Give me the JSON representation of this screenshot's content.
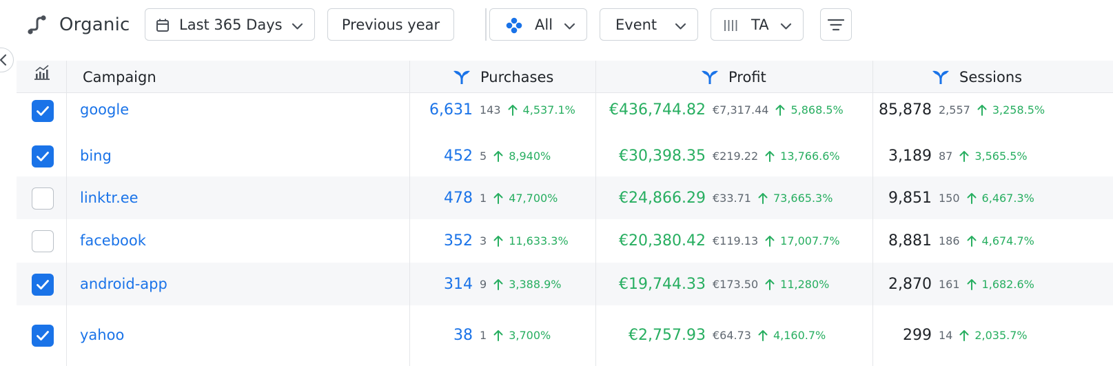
{
  "toolbar": {
    "title": "Organic",
    "date_range": "Last 365 Days",
    "compare": "Previous year",
    "channel": "All",
    "attribution": "Event",
    "model": "TA"
  },
  "table": {
    "headers": {
      "campaign": "Campaign",
      "purchases": "Purchases",
      "profit": "Profit",
      "sessions": "Sessions"
    },
    "rows": [
      {
        "campaign": "google",
        "checked": true,
        "purchases": "6,631",
        "purchases_prev": "143",
        "purchases_change": "4,537.1%",
        "profit": "€436,744.82",
        "profit_prev": "€7,317.44",
        "profit_change": "5,868.5%",
        "sessions": "85,878",
        "sessions_prev": "2,557",
        "sessions_change": "3,258.5%"
      },
      {
        "campaign": "bing",
        "checked": true,
        "purchases": "452",
        "purchases_prev": "5",
        "purchases_change": "8,940%",
        "profit": "€30,398.35",
        "profit_prev": "€219.22",
        "profit_change": "13,766.6%",
        "sessions": "3,189",
        "sessions_prev": "87",
        "sessions_change": "3,565.5%"
      },
      {
        "campaign": "linktr.ee",
        "checked": false,
        "purchases": "478",
        "purchases_prev": "1",
        "purchases_change": "47,700%",
        "profit": "€24,866.29",
        "profit_prev": "€33.71",
        "profit_change": "73,665.3%",
        "sessions": "9,851",
        "sessions_prev": "150",
        "sessions_change": "6,467.3%"
      },
      {
        "campaign": "facebook",
        "checked": false,
        "purchases": "352",
        "purchases_prev": "3",
        "purchases_change": "11,633.3%",
        "profit": "€20,380.42",
        "profit_prev": "€119.13",
        "profit_change": "17,007.7%",
        "sessions": "8,881",
        "sessions_prev": "186",
        "sessions_change": "4,674.7%"
      },
      {
        "campaign": "android-app",
        "checked": true,
        "purchases": "314",
        "purchases_prev": "9",
        "purchases_change": "3,388.9%",
        "profit": "€19,744.33",
        "profit_prev": "€173.50",
        "profit_change": "11,280%",
        "sessions": "2,870",
        "sessions_prev": "161",
        "sessions_change": "1,682.6%"
      },
      {
        "campaign": "yahoo",
        "checked": true,
        "purchases": "38",
        "purchases_prev": "1",
        "purchases_change": "3,700%",
        "profit": "€2,757.93",
        "profit_prev": "€64.73",
        "profit_change": "4,160.7%",
        "sessions": "299",
        "sessions_prev": "14",
        "sessions_change": "2,035.7%"
      }
    ]
  },
  "colors": {
    "accent": "#1a73e8",
    "positive": "#27ae60",
    "muted": "#5f6770",
    "row_alt": "#f6f7f9",
    "border": "#cfd4d9"
  },
  "icons": {
    "brand": "organic-route-icon",
    "date": "calendar-icon",
    "channel": "channels-dots-icon",
    "model": "columns-icon",
    "menu": "menu-lines-icon",
    "collapse": "chevron-left-icon",
    "chart_toggle": "chart-icon",
    "header_funnel": "funnel-icon",
    "row_change": "arrow-up-icon"
  }
}
